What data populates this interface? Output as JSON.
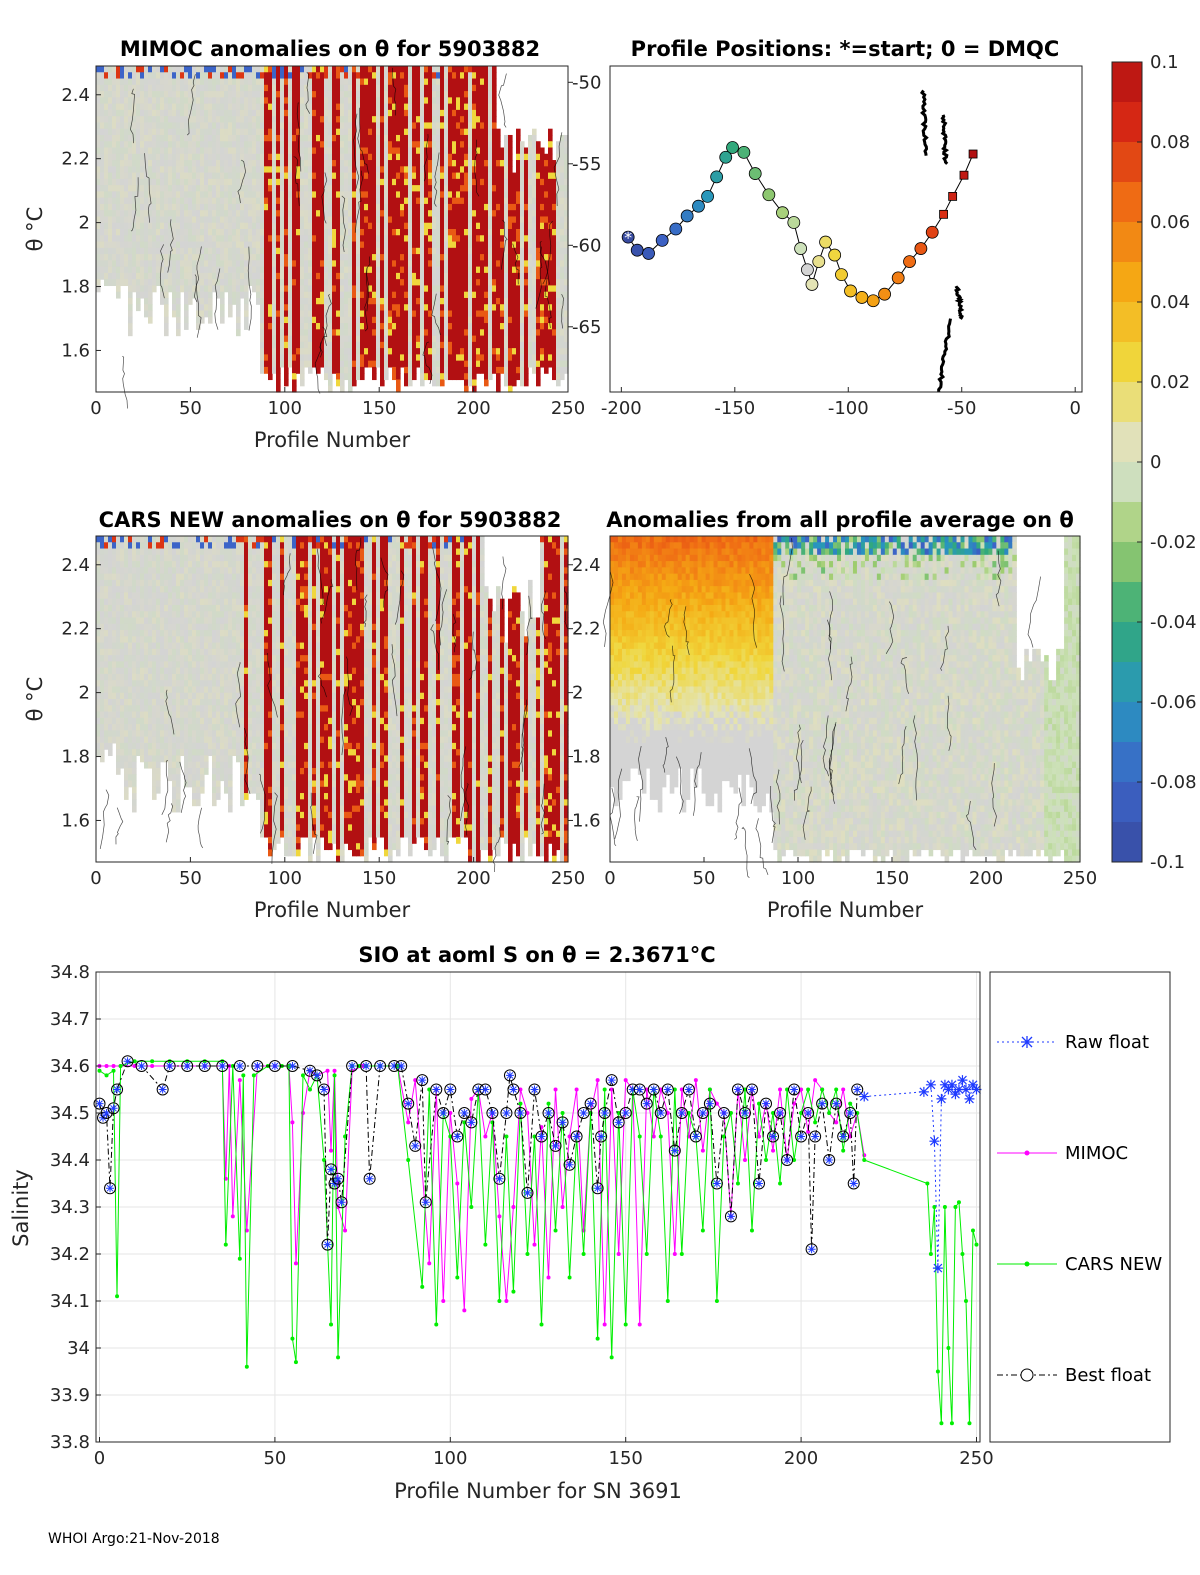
{
  "footer": "WHOI Argo:21-Nov-2018",
  "colors": {
    "raw_float": "#1f3bff",
    "mimoc": "#ff00ff",
    "cars_new": "#00ee00",
    "best_float": "#000000",
    "anomaly_high": "#b11012",
    "anomaly_mid": "#d4d4d4",
    "anomaly_low": "#3a57a6"
  },
  "chart_data": [
    {
      "id": "mimoc",
      "type": "heatmap",
      "title": "MIMOC anomalies on θ  for 5903882",
      "xlabel": "Profile Number",
      "ylabel": "θ °C",
      "xlim": [
        0,
        250
      ],
      "ylim": [
        1.47,
        2.49
      ],
      "xticks": [
        "0",
        "50",
        "100",
        "150",
        "200",
        "250"
      ],
      "yticks": [
        "1.6",
        "1.8",
        "2",
        "2.2",
        "2.4"
      ],
      "description_values": "gray (≈0) for profiles 0-85; strong positive anomalies (>0.1) for profiles 85-250"
    },
    {
      "id": "positions",
      "type": "scatter",
      "title": "Profile Positions: *=start; 0 = DMQC",
      "xlim": [
        -205,
        3
      ],
      "ylim": [
        -69,
        -49
      ],
      "xticks": [
        "-200",
        "-150",
        "-100",
        "-50",
        "0"
      ],
      "yticks": [
        "-50",
        "-55",
        "-60",
        "-65"
      ],
      "track": [
        [
          -197,
          -59.5
        ],
        [
          -193,
          -60.3
        ],
        [
          -188,
          -60.5
        ],
        [
          -182,
          -59.7
        ],
        [
          -176,
          -59.0
        ],
        [
          -171,
          -58.2
        ],
        [
          -166,
          -57.6
        ],
        [
          -162,
          -57.0
        ],
        [
          -158,
          -55.8
        ],
        [
          -154,
          -54.6
        ],
        [
          -151,
          -54.0
        ],
        [
          -146,
          -54.3
        ],
        [
          -141,
          -55.6
        ],
        [
          -135,
          -56.9
        ],
        [
          -129,
          -58.0
        ],
        [
          -124,
          -58.6
        ],
        [
          -121,
          -60.2
        ],
        [
          -118,
          -61.5
        ],
        [
          -116,
          -62.4
        ],
        [
          -113,
          -61.0
        ],
        [
          -110,
          -59.8
        ],
        [
          -106,
          -60.6
        ],
        [
          -103,
          -61.8
        ],
        [
          -99,
          -62.8
        ],
        [
          -94,
          -63.2
        ],
        [
          -89,
          -63.4
        ],
        [
          -84,
          -63.0
        ],
        [
          -78,
          -62.0
        ],
        [
          -73,
          -61.0
        ],
        [
          -68,
          -60.2
        ],
        [
          -63,
          -59.2
        ],
        [
          -58,
          -58.1
        ],
        [
          -54,
          -57.0
        ],
        [
          -49,
          -55.7
        ],
        [
          -45,
          -54.4
        ]
      ]
    },
    {
      "id": "cars",
      "type": "heatmap",
      "title": "CARS NEW anomalies on θ for 5903882",
      "xlabel": "Profile Number",
      "ylabel": "θ °C",
      "xlim": [
        0,
        250
      ],
      "ylim": [
        1.47,
        2.49
      ],
      "xticks": [
        "0",
        "50",
        "100",
        "150",
        "200",
        "250"
      ],
      "yticks": [
        "1.6",
        "1.8",
        "2",
        "2.2",
        "2.4"
      ]
    },
    {
      "id": "average",
      "type": "heatmap",
      "title": "Anomalies from all profile average on θ",
      "xlabel": "Profile Number",
      "xlim": [
        0,
        250
      ],
      "ylim": [
        1.47,
        2.49
      ],
      "xticks": [
        "0",
        "50",
        "100",
        "150",
        "200",
        "250"
      ],
      "yticks": [
        "1.6",
        "1.8",
        "2",
        "2.2",
        "2.4"
      ]
    },
    {
      "id": "colorbar",
      "type": "colorbar",
      "range": [
        -0.1,
        0.1
      ],
      "ticks": [
        "0.1",
        "0.08",
        "0.06",
        "0.04",
        "0.02",
        "0",
        "-0.02",
        "-0.04",
        "-0.06",
        "-0.08",
        "-0.1"
      ]
    },
    {
      "id": "salinity",
      "type": "line",
      "title": "SIO at aoml S on θ = 2.3671°C",
      "xlabel": "Profile Number for SN 3691",
      "ylabel": "Salinity",
      "xlim": [
        -1,
        251
      ],
      "ylim": [
        33.8,
        34.8
      ],
      "grid": true,
      "legend_position": "right",
      "xticks": [
        "0",
        "50",
        "100",
        "150",
        "200",
        "250"
      ],
      "yticks": [
        "33.8",
        "33.9",
        "34",
        "34.1",
        "34.2",
        "34.3",
        "34.4",
        "34.5",
        "34.6",
        "34.7",
        "34.8"
      ],
      "series": [
        {
          "name": "Raw float",
          "x": [
            218,
            235,
            237,
            238,
            239,
            240,
            241,
            242,
            243,
            244,
            245,
            246,
            247,
            248,
            249,
            250
          ],
          "y": [
            34.535,
            34.545,
            34.56,
            34.44,
            34.17,
            34.53,
            34.56,
            34.55,
            34.56,
            34.54,
            34.55,
            34.57,
            34.55,
            34.53,
            34.56,
            34.55
          ]
        },
        {
          "name": "MIMOC",
          "x": [
            0,
            2,
            4,
            6,
            10,
            15,
            20,
            25,
            30,
            35,
            36,
            37,
            38,
            40,
            42,
            45,
            50,
            54,
            55,
            56,
            58,
            60,
            62,
            65,
            66,
            67,
            68,
            70,
            72,
            75,
            80,
            85,
            88,
            90,
            94,
            96,
            98,
            100,
            102,
            104,
            106,
            108,
            110,
            112,
            114,
            116,
            118,
            120,
            122,
            124,
            126,
            128,
            130,
            132,
            134,
            136,
            138,
            140,
            142,
            144,
            146,
            148,
            150,
            152,
            154,
            156,
            158,
            160,
            162,
            164,
            166,
            168,
            170,
            172,
            174,
            176,
            178,
            180,
            182,
            184,
            186,
            188,
            190,
            192,
            194,
            196,
            198,
            200,
            202,
            204,
            206,
            208,
            210,
            212,
            214,
            216,
            218
          ],
          "y": [
            34.6,
            34.6,
            34.6,
            34.6,
            34.6,
            34.6,
            34.6,
            34.6,
            34.6,
            34.6,
            34.36,
            34.6,
            34.28,
            34.57,
            34.25,
            34.6,
            34.6,
            34.6,
            34.48,
            34.18,
            34.5,
            34.59,
            34.58,
            34.59,
            34.42,
            34.59,
            34.3,
            34.25,
            34.59,
            34.6,
            34.6,
            34.6,
            34.48,
            34.57,
            34.18,
            34.55,
            34.1,
            34.5,
            34.35,
            34.08,
            34.53,
            34.55,
            34.45,
            34.5,
            34.28,
            34.1,
            34.3,
            34.55,
            34.5,
            34.22,
            34.47,
            34.15,
            34.55,
            34.3,
            34.45,
            34.55,
            34.25,
            34.5,
            34.57,
            34.05,
            34.55,
            34.2,
            34.57,
            34.55,
            34.05,
            34.55,
            34.45,
            34.55,
            34.5,
            34.2,
            34.55,
            34.45,
            34.57,
            34.42,
            34.55,
            34.52,
            34.5,
            34.28,
            34.55,
            34.4,
            34.55,
            34.45,
            34.52,
            34.42,
            34.55,
            34.4,
            34.52,
            34.55,
            34.46,
            34.57,
            34.55,
            34.5,
            34.48,
            34.55,
            34.45,
            34.5,
            34.41
          ]
        },
        {
          "name": "CARS NEW",
          "x": [
            0,
            2,
            4,
            5,
            6,
            10,
            15,
            20,
            25,
            30,
            35,
            36,
            38,
            40,
            41,
            42,
            44,
            48,
            52,
            54,
            55,
            56,
            58,
            60,
            62,
            64,
            66,
            67,
            68,
            70,
            72,
            74,
            76,
            80,
            85,
            88,
            92,
            94,
            96,
            98,
            100,
            102,
            104,
            106,
            108,
            110,
            112,
            114,
            116,
            118,
            120,
            122,
            124,
            126,
            128,
            130,
            132,
            134,
            136,
            138,
            140,
            142,
            144,
            146,
            148,
            150,
            152,
            154,
            156,
            158,
            160,
            162,
            164,
            166,
            168,
            170,
            172,
            174,
            176,
            178,
            180,
            182,
            184,
            186,
            188,
            190,
            192,
            194,
            196,
            198,
            200,
            202,
            204,
            206,
            208,
            210,
            212,
            214,
            216,
            218,
            236,
            237,
            238,
            239,
            240,
            241,
            242,
            243,
            244,
            245,
            246,
            247,
            248,
            249,
            250
          ],
          "y": [
            34.59,
            34.58,
            34.59,
            34.11,
            34.6,
            34.61,
            34.61,
            34.61,
            34.61,
            34.61,
            34.61,
            34.22,
            34.6,
            34.19,
            34.58,
            33.96,
            34.58,
            34.6,
            34.6,
            34.6,
            34.02,
            33.97,
            34.58,
            34.55,
            34.58,
            34.4,
            34.05,
            34.58,
            33.98,
            34.45,
            34.6,
            34.6,
            34.6,
            34.6,
            34.6,
            34.4,
            34.13,
            34.55,
            34.05,
            34.5,
            34.45,
            34.15,
            34.48,
            34.3,
            34.55,
            34.22,
            34.48,
            34.1,
            34.45,
            34.12,
            34.52,
            34.2,
            34.45,
            34.05,
            34.52,
            34.25,
            34.5,
            34.15,
            34.45,
            34.2,
            34.5,
            34.02,
            34.55,
            33.98,
            34.5,
            34.05,
            34.55,
            34.45,
            34.2,
            34.55,
            34.45,
            34.1,
            34.55,
            34.2,
            34.5,
            34.45,
            34.25,
            34.55,
            34.1,
            34.45,
            34.5,
            34.35,
            34.55,
            34.25,
            34.52,
            34.4,
            34.5,
            34.35,
            34.55,
            34.4,
            34.5,
            34.55,
            34.48,
            34.55,
            34.5,
            34.55,
            34.42,
            34.52,
            34.5,
            34.4,
            34.35,
            34.2,
            34.3,
            33.95,
            33.84,
            34.3,
            34.0,
            33.84,
            34.3,
            34.31,
            34.2,
            34.1,
            33.84,
            34.25,
            34.22
          ]
        },
        {
          "name": "Best float",
          "x": [
            0,
            1,
            2,
            3,
            4,
            5,
            8,
            12,
            18,
            20,
            25,
            30,
            35,
            40,
            45,
            50,
            55,
            60,
            62,
            64,
            65,
            66,
            67,
            68,
            69,
            72,
            76,
            77,
            80,
            84,
            86,
            88,
            90,
            92,
            93,
            96,
            98,
            100,
            102,
            104,
            106,
            108,
            110,
            112,
            114,
            116,
            117,
            118,
            120,
            122,
            124,
            126,
            128,
            130,
            132,
            134,
            136,
            138,
            140,
            142,
            143,
            144,
            146,
            148,
            150,
            152,
            154,
            156,
            158,
            160,
            162,
            164,
            166,
            168,
            170,
            172,
            174,
            176,
            178,
            180,
            182,
            184,
            186,
            188,
            190,
            192,
            194,
            196,
            198,
            200,
            202,
            203,
            204,
            206,
            208,
            210,
            212,
            214,
            215,
            216
          ],
          "y": [
            34.52,
            34.49,
            34.5,
            34.34,
            34.51,
            34.55,
            34.61,
            34.6,
            34.55,
            34.6,
            34.6,
            34.6,
            34.6,
            34.6,
            34.6,
            34.6,
            34.6,
            34.59,
            34.58,
            34.55,
            34.22,
            34.38,
            34.35,
            34.36,
            34.31,
            34.6,
            34.6,
            34.36,
            34.6,
            34.6,
            34.6,
            34.52,
            34.43,
            34.57,
            34.31,
            34.55,
            34.5,
            34.55,
            34.45,
            34.5,
            34.48,
            34.55,
            34.55,
            34.5,
            34.36,
            34.5,
            34.58,
            34.55,
            34.5,
            34.33,
            34.55,
            34.45,
            34.5,
            34.43,
            34.48,
            34.39,
            34.45,
            34.5,
            34.52,
            34.34,
            34.45,
            34.5,
            34.57,
            34.48,
            34.5,
            34.55,
            34.55,
            34.52,
            34.55,
            34.5,
            34.55,
            34.42,
            34.5,
            34.55,
            34.45,
            34.5,
            34.52,
            34.35,
            34.5,
            34.28,
            34.55,
            34.5,
            34.55,
            34.35,
            34.52,
            34.45,
            34.5,
            34.4,
            34.55,
            34.45,
            34.5,
            34.21,
            34.45,
            34.52,
            34.4,
            34.52,
            34.45,
            34.5,
            34.35,
            34.55
          ]
        }
      ]
    }
  ]
}
